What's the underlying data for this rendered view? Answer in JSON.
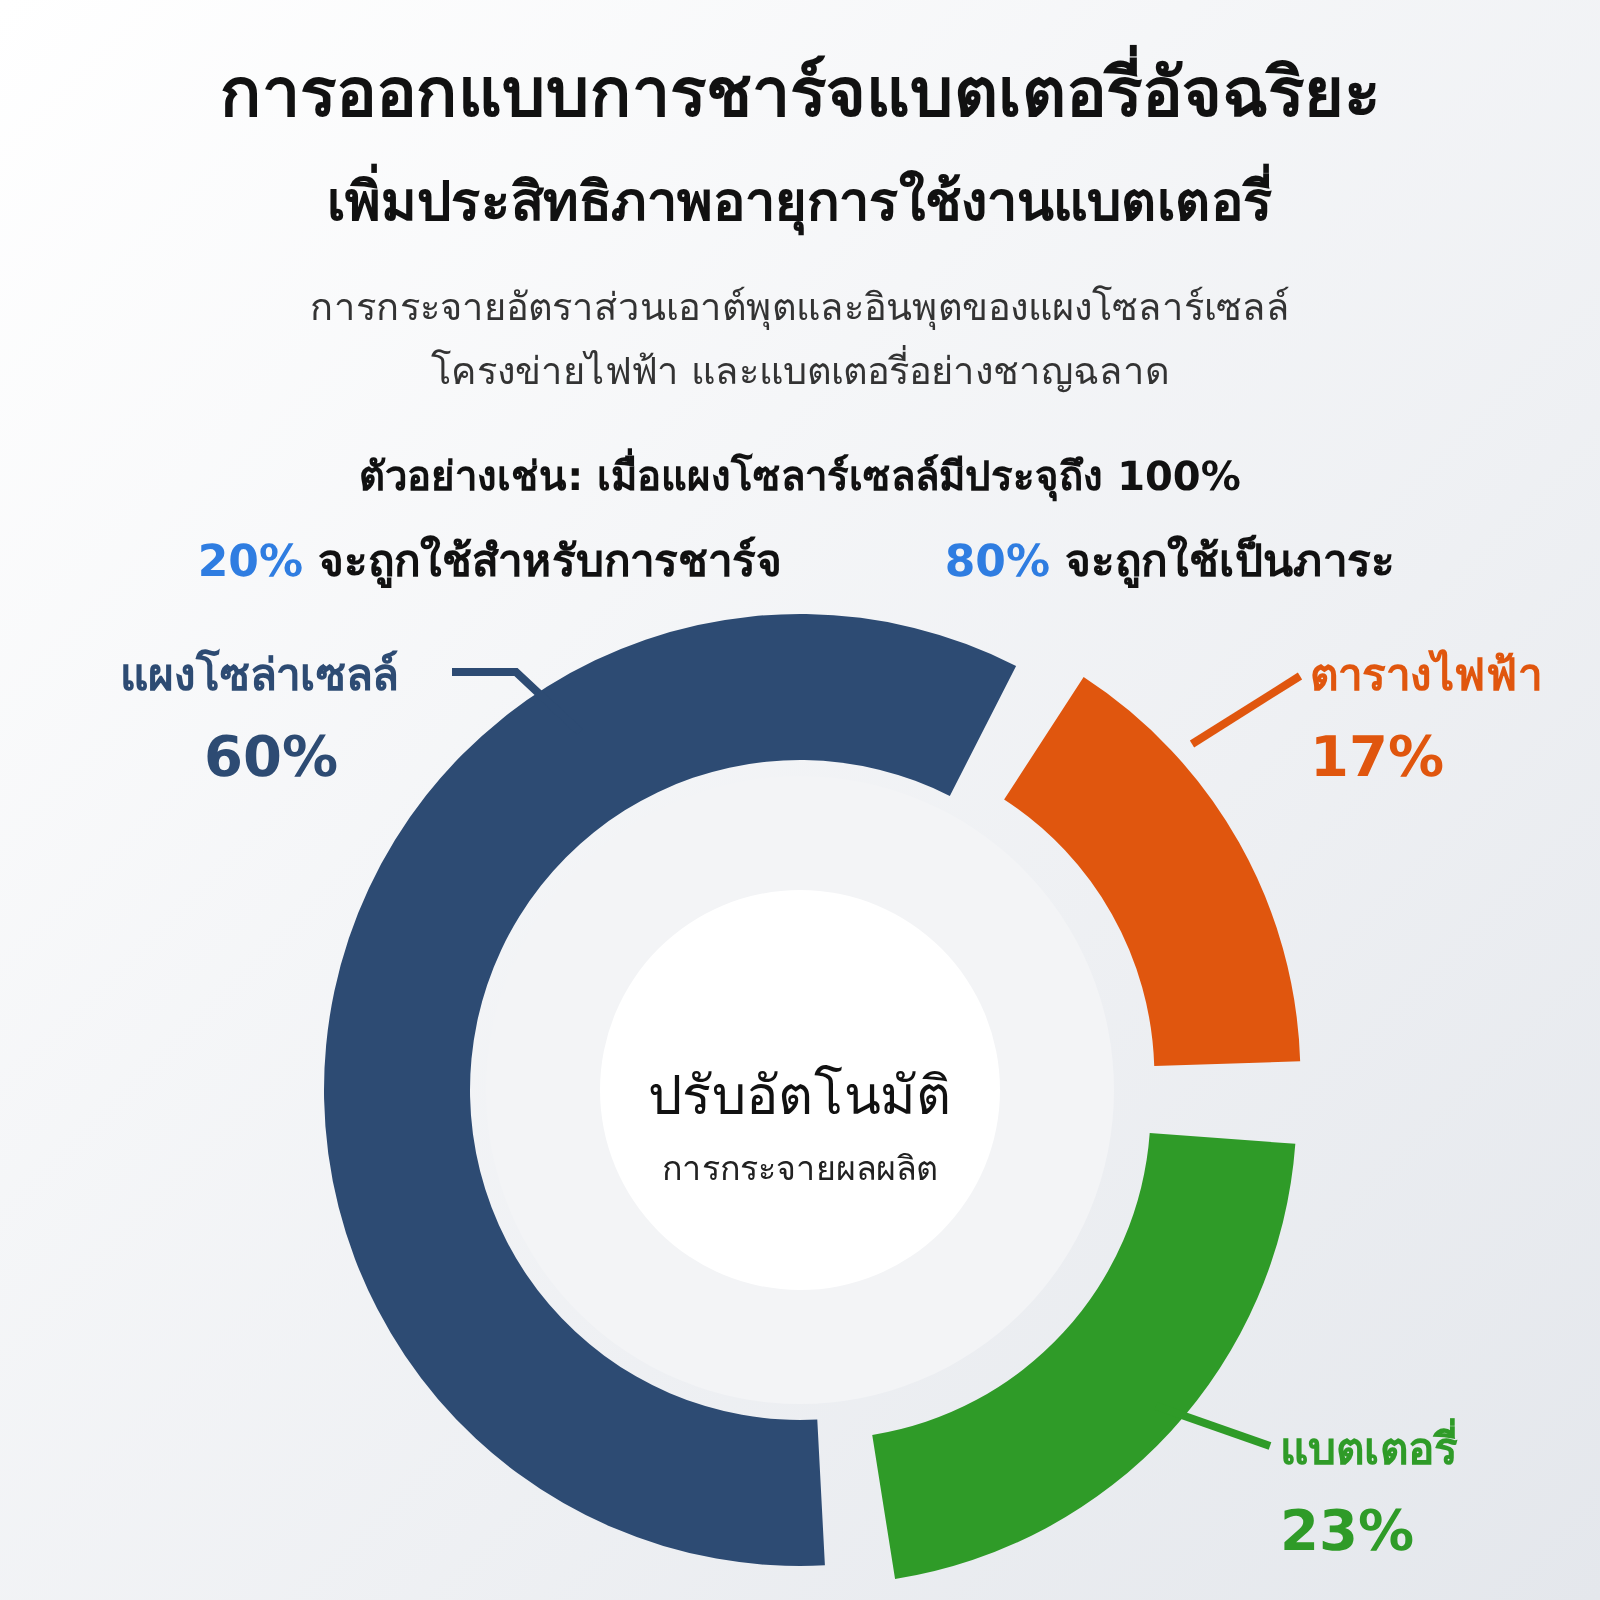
{
  "chart_data": {
    "type": "donut",
    "title": "การออกแบบการชาร์จแบตเตอรี่อัจฉริยะ",
    "subtitle": "เพิ่มประสิทธิภาพอายุการใช้งานแบตเตอรี่",
    "annotations": [
      "การกระจายอัตราส่วนเอาต์พุตและอินพุตของแผงโซลาร์เซลล์",
      "โครงข่ายไฟฟ้า และแบตเตอรี่อย่างชาญฉลาด",
      "ตัวอย่างเช่น: เมื่อแผงโซลาร์เซลล์มีประจุถึง 100%",
      "20% จะถูกใช้สำหรับการชาร์จ",
      "80% จะถูกใช้เป็นภาระ",
      "ปรับอัตโนมัติ",
      "การกระจายผลผลิต"
    ],
    "categories": [
      "แผงโซล่าเซลล์",
      "ตารางไฟฟ้า",
      "แบตเตอรี่"
    ],
    "values": [
      60,
      17,
      23
    ],
    "value_labels": [
      "60%",
      "17%",
      "23%"
    ],
    "colors": [
      "#2d4b73",
      "#e0560e",
      "#2f9b28"
    ]
  }
}
